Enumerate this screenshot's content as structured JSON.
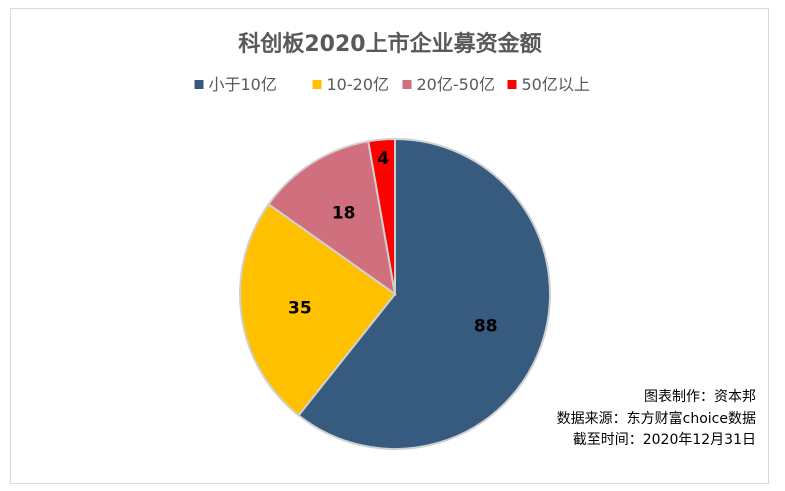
{
  "chart_data": {
    "type": "pie",
    "title": "科创板2020上市企业募资金额",
    "categories": [
      "小于10亿",
      "10-20亿",
      "20亿-50亿",
      "50亿以上"
    ],
    "values": [
      88,
      35,
      18,
      4
    ],
    "colors": [
      "#375a7f",
      "#ffc000",
      "#d0707f",
      "#ff0000"
    ],
    "legend_position": "top",
    "show_data_labels": true
  },
  "notes": {
    "maker": "图表制作：资本邦",
    "source": "数据来源：东方财富choice数据",
    "cutoff": "截至时间：2020年12月31日"
  }
}
